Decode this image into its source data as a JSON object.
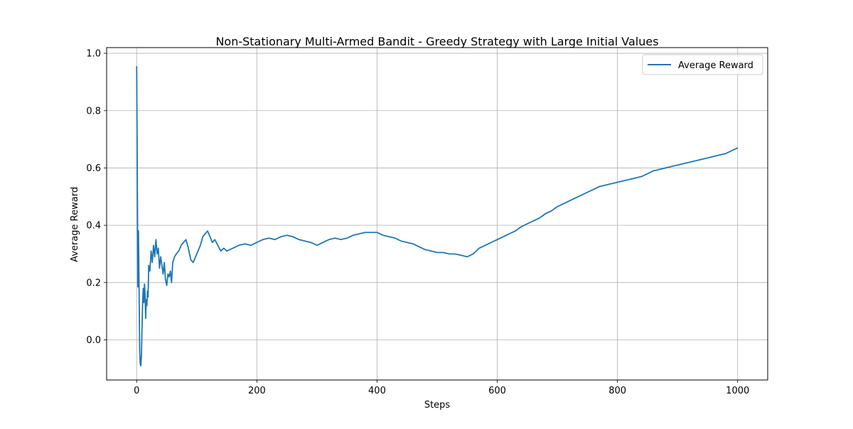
{
  "chart_data": {
    "type": "line",
    "title": "Non-Stationary Multi-Armed Bandit - Greedy Strategy with Large Initial Values",
    "xlabel": "Steps",
    "ylabel": "Average Reward",
    "xlim": [
      -50,
      1050
    ],
    "ylim": [
      -0.14,
      1.02
    ],
    "xticks": [
      0,
      200,
      400,
      600,
      800,
      1000
    ],
    "yticks": [
      0.0,
      0.2,
      0.4,
      0.6,
      0.8,
      1.0
    ],
    "xtick_labels": [
      "0",
      "200",
      "400",
      "600",
      "800",
      "1000"
    ],
    "ytick_labels": [
      "0.0",
      "0.2",
      "0.4",
      "0.6",
      "0.8",
      "1.0"
    ],
    "grid": true,
    "legend_position": "top-right",
    "series": [
      {
        "name": "Average Reward",
        "color": "#1f77b4",
        "x": [
          0,
          1,
          2,
          3,
          4,
          5,
          6,
          7,
          8,
          9,
          10,
          11,
          12,
          13,
          14,
          15,
          16,
          17,
          18,
          19,
          20,
          22,
          24,
          26,
          28,
          30,
          32,
          34,
          36,
          38,
          40,
          42,
          44,
          46,
          48,
          50,
          52,
          54,
          56,
          58,
          60,
          63,
          66,
          70,
          74,
          78,
          82,
          86,
          90,
          94,
          98,
          102,
          106,
          110,
          114,
          118,
          122,
          126,
          130,
          135,
          140,
          145,
          150,
          160,
          170,
          180,
          190,
          200,
          210,
          220,
          230,
          240,
          250,
          260,
          270,
          280,
          290,
          300,
          310,
          320,
          330,
          340,
          350,
          360,
          370,
          380,
          390,
          400,
          410,
          420,
          430,
          440,
          450,
          460,
          470,
          480,
          490,
          500,
          510,
          520,
          530,
          540,
          550,
          560,
          570,
          580,
          590,
          600,
          610,
          620,
          630,
          640,
          650,
          660,
          670,
          680,
          690,
          700,
          710,
          720,
          730,
          740,
          750,
          760,
          770,
          780,
          790,
          800,
          810,
          820,
          830,
          840,
          850,
          860,
          870,
          880,
          890,
          900,
          910,
          920,
          930,
          940,
          950,
          960,
          970,
          980,
          990,
          1000
        ],
        "y": [
          0.955,
          0.6,
          0.185,
          0.38,
          0.18,
          -0.04,
          -0.085,
          -0.09,
          -0.05,
          0.05,
          0.14,
          0.18,
          0.13,
          0.195,
          0.16,
          0.075,
          0.14,
          0.12,
          0.17,
          0.15,
          0.26,
          0.24,
          0.31,
          0.27,
          0.33,
          0.29,
          0.35,
          0.3,
          0.32,
          0.25,
          0.29,
          0.26,
          0.23,
          0.27,
          0.21,
          0.19,
          0.23,
          0.22,
          0.24,
          0.2,
          0.27,
          0.29,
          0.3,
          0.31,
          0.33,
          0.34,
          0.35,
          0.32,
          0.28,
          0.27,
          0.29,
          0.31,
          0.33,
          0.36,
          0.37,
          0.38,
          0.36,
          0.34,
          0.35,
          0.33,
          0.31,
          0.32,
          0.31,
          0.32,
          0.33,
          0.335,
          0.33,
          0.34,
          0.35,
          0.355,
          0.35,
          0.36,
          0.365,
          0.36,
          0.35,
          0.345,
          0.34,
          0.33,
          0.34,
          0.35,
          0.355,
          0.35,
          0.355,
          0.365,
          0.37,
          0.375,
          0.375,
          0.375,
          0.365,
          0.36,
          0.355,
          0.345,
          0.34,
          0.335,
          0.325,
          0.315,
          0.31,
          0.305,
          0.305,
          0.3,
          0.3,
          0.295,
          0.29,
          0.3,
          0.32,
          0.33,
          0.34,
          0.35,
          0.36,
          0.37,
          0.38,
          0.395,
          0.405,
          0.415,
          0.425,
          0.44,
          0.45,
          0.465,
          0.475,
          0.485,
          0.495,
          0.505,
          0.515,
          0.525,
          0.535,
          0.54,
          0.545,
          0.55,
          0.555,
          0.56,
          0.565,
          0.57,
          0.58,
          0.59,
          0.595,
          0.6,
          0.605,
          0.61,
          0.615,
          0.62,
          0.625,
          0.63,
          0.635,
          0.64,
          0.645,
          0.65,
          0.66,
          0.67
        ]
      }
    ]
  }
}
